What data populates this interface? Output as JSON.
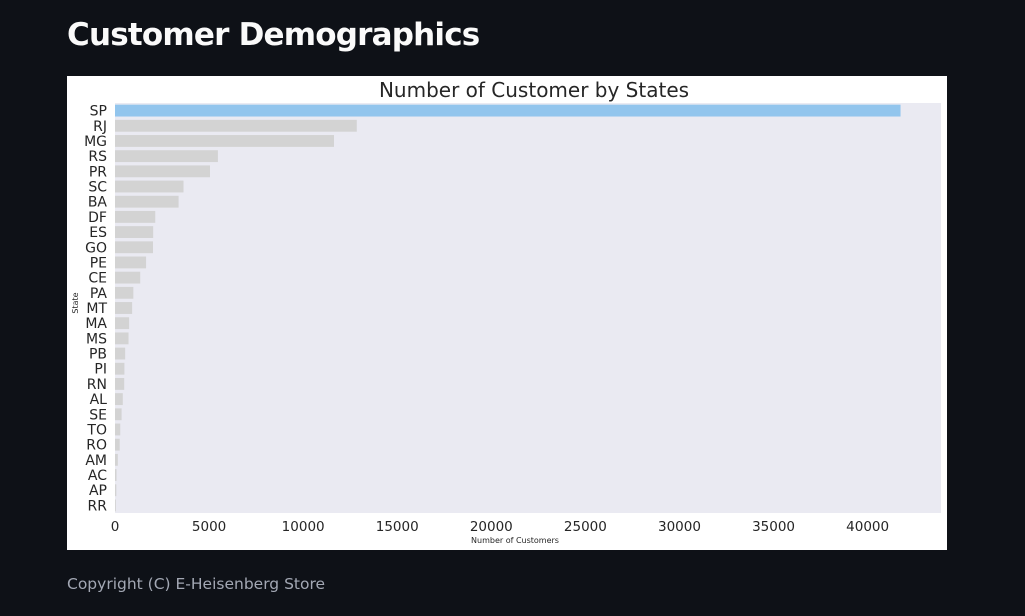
{
  "page": {
    "title": "Customer Demographics",
    "footer": "Copyright (C) E-Heisenberg Store"
  },
  "colors": {
    "background": "#0e1117",
    "plot_area": "#eaeaf2",
    "bar_default": "#d3d3d3",
    "bar_highlight": "#92c5ed"
  },
  "chart_data": {
    "type": "bar",
    "orientation": "horizontal",
    "title": "Number of Customer by States",
    "xlabel": "Number of Customers",
    "ylabel": "State",
    "xlim": [
      0,
      43900
    ],
    "xticks": [
      0,
      5000,
      10000,
      15000,
      20000,
      25000,
      30000,
      35000,
      40000
    ],
    "grid": false,
    "highlight_category": "SP",
    "categories": [
      "SP",
      "RJ",
      "MG",
      "RS",
      "PR",
      "SC",
      "BA",
      "DF",
      "ES",
      "GO",
      "PE",
      "CE",
      "PA",
      "MT",
      "MA",
      "MS",
      "PB",
      "PI",
      "RN",
      "AL",
      "SE",
      "TO",
      "RO",
      "AM",
      "AC",
      "AP",
      "RR"
    ],
    "values": [
      41750,
      12850,
      11640,
      5470,
      5050,
      3640,
      3380,
      2140,
      2030,
      2020,
      1650,
      1340,
      975,
      910,
      750,
      720,
      540,
      500,
      490,
      415,
      350,
      280,
      250,
      150,
      80,
      70,
      46
    ]
  }
}
